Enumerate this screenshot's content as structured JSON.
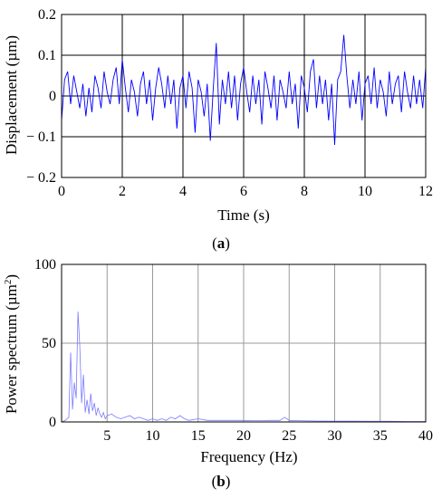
{
  "chart_data": [
    {
      "type": "line",
      "panel_label": "a",
      "xlabel": "Time (s)",
      "ylabel": "Displacement (µm)",
      "xlim": [
        0,
        12
      ],
      "ylim": [
        -0.2,
        0.2
      ],
      "xticks": [
        0,
        2,
        4,
        6,
        8,
        10,
        12
      ],
      "yticks": [
        -0.2,
        -0.1,
        0,
        0.1,
        0.2
      ],
      "ytick_labels": [
        "− 0.2",
        "− 0.1",
        "0",
        "0.1",
        "0.2"
      ],
      "grid": true,
      "line_color": "#0000ff",
      "series": [
        {
          "x": [
            0.0,
            0.1,
            0.2,
            0.3,
            0.4,
            0.5,
            0.6,
            0.7,
            0.8,
            0.9,
            1.0,
            1.1,
            1.2,
            1.3,
            1.4,
            1.5,
            1.6,
            1.7,
            1.8,
            1.9,
            2.0,
            2.1,
            2.2,
            2.3,
            2.4,
            2.5,
            2.6,
            2.7,
            2.8,
            2.9,
            3.0,
            3.1,
            3.2,
            3.3,
            3.4,
            3.5,
            3.6,
            3.7,
            3.8,
            3.9,
            4.0,
            4.1,
            4.2,
            4.3,
            4.4,
            4.5,
            4.6,
            4.7,
            4.8,
            4.9,
            5.0,
            5.1,
            5.2,
            5.3,
            5.4,
            5.5,
            5.6,
            5.7,
            5.8,
            5.9,
            6.0,
            6.1,
            6.2,
            6.3,
            6.4,
            6.5,
            6.6,
            6.7,
            6.8,
            6.9,
            7.0,
            7.1,
            7.2,
            7.3,
            7.4,
            7.5,
            7.6,
            7.7,
            7.8,
            7.9,
            8.0,
            8.1,
            8.2,
            8.3,
            8.4,
            8.5,
            8.6,
            8.7,
            8.8,
            8.9,
            9.0,
            9.1,
            9.2,
            9.3,
            9.4,
            9.5,
            9.6,
            9.7,
            9.8,
            9.9,
            10.0,
            10.1,
            10.2,
            10.3,
            10.4,
            10.5,
            10.6,
            10.7,
            10.8,
            10.9,
            11.0,
            11.1,
            11.2,
            11.3,
            11.4,
            11.5,
            11.6,
            11.7,
            11.8,
            11.9,
            12.0
          ],
          "y": [
            -0.06,
            0.04,
            0.06,
            -0.02,
            0.05,
            0.01,
            -0.03,
            0.03,
            -0.05,
            0.02,
            -0.04,
            0.05,
            0.02,
            -0.03,
            0.06,
            0.01,
            -0.02,
            0.04,
            0.07,
            -0.02,
            0.09,
            0.02,
            -0.04,
            0.04,
            0.01,
            -0.05,
            0.03,
            0.06,
            -0.02,
            0.04,
            -0.06,
            0.02,
            0.07,
            0.03,
            -0.03,
            0.05,
            -0.02,
            0.04,
            -0.08,
            0.02,
            0.05,
            -0.03,
            0.06,
            0.02,
            -0.09,
            0.04,
            0.01,
            -0.05,
            0.03,
            -0.11,
            0.02,
            0.13,
            -0.07,
            0.04,
            -0.02,
            0.06,
            -0.03,
            0.05,
            -0.06,
            0.03,
            0.07,
            0.01,
            -0.04,
            0.05,
            -0.02,
            0.04,
            -0.07,
            0.06,
            0.02,
            -0.03,
            0.05,
            -0.06,
            0.04,
            0.01,
            -0.03,
            0.06,
            -0.02,
            0.03,
            -0.08,
            0.05,
            0.02,
            -0.04,
            0.06,
            0.09,
            -0.03,
            0.05,
            -0.02,
            0.04,
            -0.06,
            0.03,
            -0.12,
            0.04,
            0.06,
            0.15,
            0.05,
            -0.03,
            0.04,
            -0.02,
            0.06,
            -0.06,
            0.03,
            0.05,
            -0.02,
            0.07,
            -0.03,
            0.04,
            0.01,
            -0.05,
            0.06,
            -0.02,
            0.03,
            0.05,
            -0.04,
            0.06,
            0.01,
            -0.03,
            0.05,
            -0.02,
            0.04,
            -0.03,
            0.07
          ]
        }
      ]
    },
    {
      "type": "line",
      "panel_label": "b",
      "xlabel": "Frequency (Hz)",
      "ylabel": "Power spectrum (µm²)",
      "xlim": [
        0,
        40
      ],
      "ylim": [
        0,
        100
      ],
      "xticks": [
        5,
        10,
        15,
        20,
        25,
        30,
        35,
        40
      ],
      "yticks": [
        0,
        50,
        100
      ],
      "grid": true,
      "line_color": "#7b7bff",
      "series": [
        {
          "x": [
            0.0,
            0.4,
            0.8,
            1.0,
            1.2,
            1.4,
            1.6,
            1.8,
            2.0,
            2.2,
            2.4,
            2.6,
            2.8,
            3.0,
            3.2,
            3.4,
            3.6,
            3.8,
            4.0,
            4.2,
            4.4,
            4.6,
            4.8,
            5.0,
            5.5,
            6.0,
            6.5,
            7.0,
            7.5,
            8.0,
            8.5,
            9.0,
            9.5,
            10.0,
            10.5,
            11.0,
            11.5,
            12.0,
            12.5,
            13.0,
            13.5,
            14.0,
            15.0,
            16.0,
            17.0,
            18.0,
            19.0,
            20.0,
            21.0,
            22.0,
            23.0,
            24.0,
            24.5,
            25.0,
            26.0,
            28.0,
            30.0,
            32.0,
            34.0,
            36.0,
            38.0,
            40.0
          ],
          "y": [
            0,
            1,
            3,
            44,
            8,
            25,
            15,
            70,
            48,
            12,
            30,
            6,
            14,
            5,
            18,
            7,
            12,
            4,
            9,
            5,
            3,
            6,
            2,
            4,
            5,
            3,
            2,
            3,
            4,
            2,
            3,
            2,
            1,
            2,
            1,
            2,
            1,
            3,
            2,
            4,
            2,
            1,
            2,
            1,
            1,
            1,
            1,
            1,
            0.8,
            0.8,
            1,
            1,
            3,
            1,
            0.8,
            0.6,
            0.5,
            0.5,
            0.4,
            0.4,
            0.3,
            0.3
          ]
        }
      ]
    }
  ]
}
